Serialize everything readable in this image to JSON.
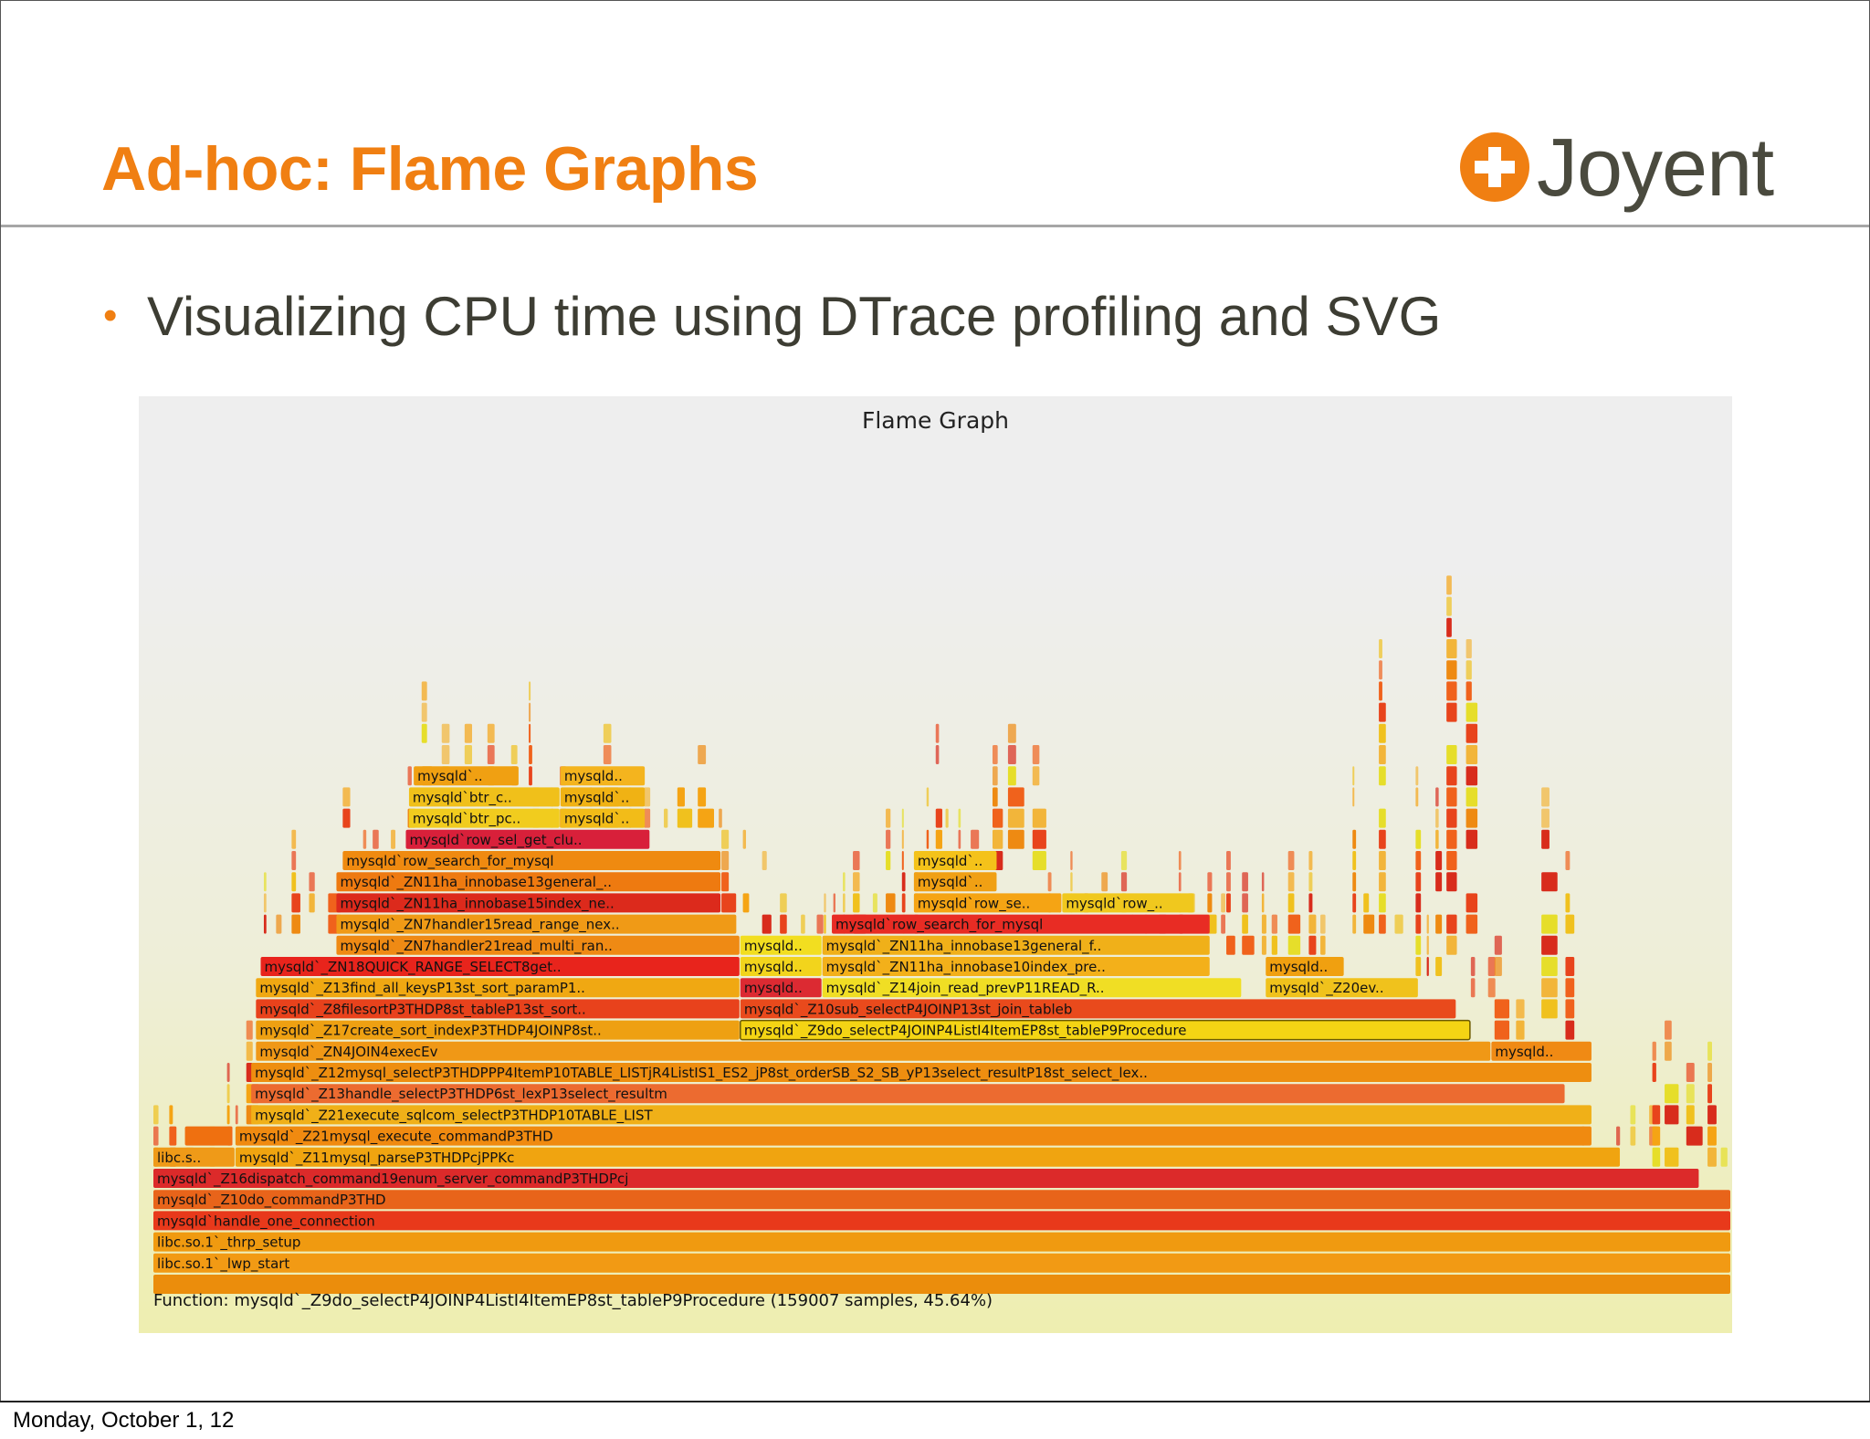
{
  "slide": {
    "title": "Ad-hoc: Flame Graphs",
    "logo_text": "Joyent",
    "logo_icon": "joyent-plus-icon",
    "bullet": "Visualizing CPU time using DTrace profiling and SVG",
    "footer_date": "Monday, October 1, 12",
    "accent_color": "#f07f12"
  },
  "flame_graph": {
    "title": "Flame Graph",
    "status": "Function: mysqld`_Z9do_selectP4JOINP4ListI4ItemEP8st_tableP9Procedure (159007 samples, 45.64%)",
    "palette": [
      "#e8441c",
      "#f0621c",
      "#ee8a12",
      "#f5a414",
      "#f0c11e",
      "#e6de2a",
      "#d82c1c",
      "#f2b53a"
    ],
    "frames": [
      {
        "level": 0,
        "start": 0.0,
        "end": 1.0,
        "label": "",
        "color": "#eb8d0c"
      },
      {
        "level": 1,
        "start": 0.0,
        "end": 1.0,
        "label": "libc.so.1`_lwp_start",
        "color": "#f29a14"
      },
      {
        "level": 2,
        "start": 0.0,
        "end": 1.0,
        "label": "libc.so.1`_thrp_setup",
        "color": "#f09a10"
      },
      {
        "level": 3,
        "start": 0.0,
        "end": 1.0,
        "label": "mysqld`handle_one_connection",
        "color": "#e8391b"
      },
      {
        "level": 4,
        "start": 0.0,
        "end": 1.0,
        "label": "mysqld`_Z10do_commandP3THD",
        "color": "#e8641a"
      },
      {
        "level": 5,
        "start": 0.0,
        "end": 0.98,
        "label": "mysqld`_Z16dispatch_command19enum_server_commandP3THDPcj",
        "color": "#dc2a2a"
      },
      {
        "level": 6,
        "start": 0.0,
        "end": 0.052,
        "label": "libc.s..",
        "color": "#ef9a18"
      },
      {
        "level": 6,
        "start": 0.052,
        "end": 0.93,
        "label": "mysqld`_Z11mysql_parseP3THDPcjPPKc",
        "color": "#f0a410"
      },
      {
        "level": 7,
        "start": 0.02,
        "end": 0.05,
        "label": "",
        "color": "#ef7010"
      },
      {
        "level": 7,
        "start": 0.052,
        "end": 0.912,
        "label": "mysqld`_Z21mysql_execute_commandP3THD",
        "color": "#f08a10"
      },
      {
        "level": 8,
        "start": 0.062,
        "end": 0.912,
        "label": "mysqld`_Z21execute_sqlcom_selectP3THDP10TABLE_LIST",
        "color": "#f0b018"
      },
      {
        "level": 9,
        "start": 0.062,
        "end": 0.895,
        "label": "mysqld`_Z13handle_selectP3THDP6st_lexP13select_resultm",
        "color": "#ec6b30"
      },
      {
        "level": 10,
        "start": 0.062,
        "end": 0.912,
        "label": "mysqld`_Z12mysql_selectP3THDPPP4ItemP10TABLE_LISTjR4ListIS1_ES2_jP8st_orderSB_S2_SB_yP13select_resultP18st_select_lex..",
        "color": "#ee8e10"
      },
      {
        "level": 11,
        "start": 0.065,
        "end": 0.848,
        "label": "mysqld`_ZN4JOIN4execEv",
        "color": "#f09816"
      },
      {
        "level": 11,
        "start": 0.848,
        "end": 0.912,
        "label": "mysqld..",
        "color": "#f08a14"
      },
      {
        "level": 12,
        "start": 0.065,
        "end": 0.372,
        "label": "mysqld`_Z17create_sort_indexP3THDP4JOINP8st..",
        "color": "#eea012"
      },
      {
        "level": 12,
        "start": 0.372,
        "end": 0.835,
        "label": "mysqld`_Z9do_selectP4JOINP4ListI4ItemEP8st_tableP9Procedure",
        "color": "#f4d414"
      },
      {
        "level": 13,
        "start": 0.065,
        "end": 0.372,
        "label": "mysqld`_Z8filesortP3THDP8st_tableP13st_sort..",
        "color": "#e8421c"
      },
      {
        "level": 13,
        "start": 0.372,
        "end": 0.826,
        "label": "mysqld`_Z10sub_selectP4JOINP13st_join_tableb",
        "color": "#e94a1c"
      },
      {
        "level": 14,
        "start": 0.065,
        "end": 0.372,
        "label": "mysqld`_Z13find_all_keysP13st_sort_paramP1..",
        "color": "#f0a812"
      },
      {
        "level": 14,
        "start": 0.372,
        "end": 0.424,
        "label": "mysqld..",
        "color": "#dc2a32"
      },
      {
        "level": 14,
        "start": 0.424,
        "end": 0.69,
        "label": "mysqld`_Z14join_read_prevP11READ_R..",
        "color": "#f0de24"
      },
      {
        "level": 14,
        "start": 0.705,
        "end": 0.802,
        "label": "mysqld`_Z20ev..",
        "color": "#f0c21c"
      },
      {
        "level": 15,
        "start": 0.068,
        "end": 0.372,
        "label": "mysqld`_ZN18QUICK_RANGE_SELECT8get..",
        "color": "#e8241c"
      },
      {
        "level": 15,
        "start": 0.372,
        "end": 0.424,
        "label": "mysqld..",
        "color": "#f2d41c"
      },
      {
        "level": 15,
        "start": 0.424,
        "end": 0.67,
        "label": "mysqld`_ZN11ha_innobase10index_pre..",
        "color": "#f3b01a"
      },
      {
        "level": 15,
        "start": 0.705,
        "end": 0.755,
        "label": "mysqld..",
        "color": "#f0a010"
      },
      {
        "level": 16,
        "start": 0.116,
        "end": 0.372,
        "label": "mysqld`_ZN7handler21read_multi_ran..",
        "color": "#ef8a14"
      },
      {
        "level": 16,
        "start": 0.372,
        "end": 0.424,
        "label": "mysqld..",
        "color": "#f2de20"
      },
      {
        "level": 16,
        "start": 0.424,
        "end": 0.67,
        "label": "mysqld`_ZN11ha_innobase13general_f..",
        "color": "#f0b019"
      },
      {
        "level": 17,
        "start": 0.116,
        "end": 0.37,
        "label": "mysqld`_ZN7handler15read_range_nex..",
        "color": "#f09a16"
      },
      {
        "level": 17,
        "start": 0.43,
        "end": 0.67,
        "label": "mysqld`row_search_for_mysql",
        "color": "#e82c24"
      },
      {
        "level": 18,
        "start": 0.116,
        "end": 0.36,
        "label": "mysqld`_ZN11ha_innobase15index_ne..",
        "color": "#dc2a1c"
      },
      {
        "level": 18,
        "start": 0.482,
        "end": 0.576,
        "label": "mysqld`row_se..",
        "color": "#f5a414"
      },
      {
        "level": 18,
        "start": 0.576,
        "end": 0.66,
        "label": "mysqld`row_..",
        "color": "#f0c81e"
      },
      {
        "level": 19,
        "start": 0.116,
        "end": 0.36,
        "label": "mysqld`_ZN11ha_innobase13general_..",
        "color": "#ee7a10"
      },
      {
        "level": 19,
        "start": 0.482,
        "end": 0.535,
        "label": "mysqld`..",
        "color": "#f0a014"
      },
      {
        "level": 20,
        "start": 0.12,
        "end": 0.36,
        "label": "mysqld`row_search_for_mysql",
        "color": "#ef8a10"
      },
      {
        "level": 20,
        "start": 0.482,
        "end": 0.535,
        "label": "mysqld`..",
        "color": "#f4c21a"
      },
      {
        "level": 21,
        "start": 0.16,
        "end": 0.315,
        "label": "mysqld`row_sel_get_clu..",
        "color": "#d8203a"
      },
      {
        "level": 22,
        "start": 0.162,
        "end": 0.258,
        "label": "mysqld`btr_pc..",
        "color": "#f1cc1e"
      },
      {
        "level": 22,
        "start": 0.258,
        "end": 0.312,
        "label": "mysqld`..",
        "color": "#f2bc18"
      },
      {
        "level": 23,
        "start": 0.162,
        "end": 0.258,
        "label": "mysqld`btr_c..",
        "color": "#f0c01a"
      },
      {
        "level": 23,
        "start": 0.258,
        "end": 0.312,
        "label": "mysqld`..",
        "color": "#f0b214"
      },
      {
        "level": 24,
        "start": 0.165,
        "end": 0.232,
        "label": "mysqld`..",
        "color": "#f0a012"
      },
      {
        "level": 24,
        "start": 0.258,
        "end": 0.312,
        "label": "mysqld..",
        "color": "#f4b41e"
      }
    ]
  }
}
